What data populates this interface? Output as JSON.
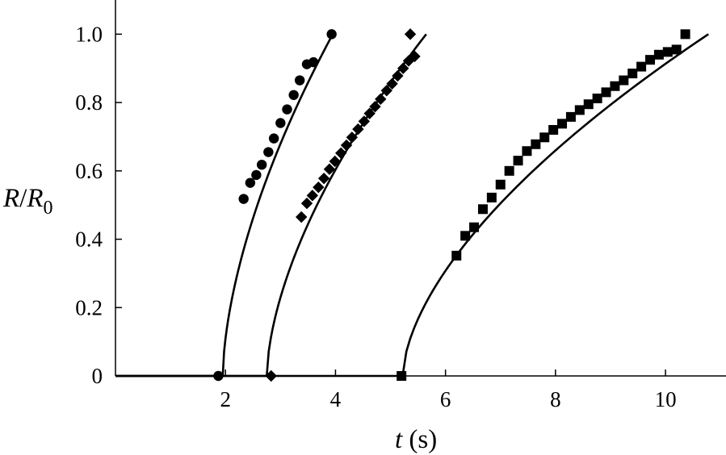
{
  "chart_data": {
    "type": "scatter",
    "title": "",
    "xlabel": {
      "var": "t",
      "unit": " (s)"
    },
    "ylabel": {
      "var1": "R",
      "sep": "/",
      "var2": "R",
      "sub": "0"
    },
    "xlim": [
      0,
      11.1
    ],
    "ylim": [
      0,
      1.1
    ],
    "x_ticks": [
      2,
      4,
      6,
      8,
      10
    ],
    "y_ticks": [
      {
        "value": 0,
        "label": "0"
      },
      {
        "value": 0.2,
        "label": "0.2"
      },
      {
        "value": 0.4,
        "label": "0.4"
      },
      {
        "value": 0.6,
        "label": "0.6"
      },
      {
        "value": 0.8,
        "label": "0.8"
      },
      {
        "value": 1.0,
        "label": "1.0"
      }
    ],
    "grid": false,
    "legend": "none",
    "series": [
      {
        "marker": "circle",
        "points": [
          [
            1.87,
            0.0
          ],
          [
            2.33,
            0.518
          ],
          [
            2.45,
            0.565
          ],
          [
            2.56,
            0.588
          ],
          [
            2.66,
            0.618
          ],
          [
            2.78,
            0.655
          ],
          [
            2.88,
            0.695
          ],
          [
            3.0,
            0.74
          ],
          [
            3.12,
            0.78
          ],
          [
            3.24,
            0.822
          ],
          [
            3.35,
            0.865
          ],
          [
            3.48,
            0.912
          ],
          [
            3.6,
            0.918
          ],
          [
            3.93,
            1.0
          ]
        ],
        "fit": {
          "t0": 1.95,
          "t1": 3.95,
          "exp": 0.6
        }
      },
      {
        "marker": "diamond",
        "points": [
          [
            2.83,
            0.0
          ],
          [
            3.38,
            0.465
          ],
          [
            3.48,
            0.505
          ],
          [
            3.58,
            0.528
          ],
          [
            3.69,
            0.552
          ],
          [
            3.79,
            0.578
          ],
          [
            3.89,
            0.605
          ],
          [
            3.99,
            0.628
          ],
          [
            4.1,
            0.652
          ],
          [
            4.2,
            0.675
          ],
          [
            4.3,
            0.698
          ],
          [
            4.41,
            0.722
          ],
          [
            4.52,
            0.745
          ],
          [
            4.62,
            0.768
          ],
          [
            4.72,
            0.788
          ],
          [
            4.82,
            0.81
          ],
          [
            4.93,
            0.835
          ],
          [
            5.03,
            0.855
          ],
          [
            5.13,
            0.878
          ],
          [
            5.23,
            0.9
          ],
          [
            5.33,
            0.922
          ],
          [
            5.44,
            0.935
          ],
          [
            5.36,
            1.0
          ]
        ],
        "fit": {
          "t0": 2.75,
          "t1": 5.65,
          "exp": 0.6
        }
      },
      {
        "marker": "square",
        "points": [
          [
            5.2,
            0.0
          ],
          [
            6.2,
            0.352
          ],
          [
            6.36,
            0.41
          ],
          [
            6.52,
            0.435
          ],
          [
            6.68,
            0.488
          ],
          [
            6.84,
            0.522
          ],
          [
            7.0,
            0.56
          ],
          [
            7.16,
            0.6
          ],
          [
            7.32,
            0.63
          ],
          [
            7.48,
            0.658
          ],
          [
            7.64,
            0.678
          ],
          [
            7.8,
            0.698
          ],
          [
            7.96,
            0.72
          ],
          [
            8.12,
            0.738
          ],
          [
            8.28,
            0.758
          ],
          [
            8.44,
            0.778
          ],
          [
            8.6,
            0.795
          ],
          [
            8.76,
            0.812
          ],
          [
            8.92,
            0.83
          ],
          [
            9.08,
            0.848
          ],
          [
            9.24,
            0.865
          ],
          [
            9.4,
            0.885
          ],
          [
            9.56,
            0.905
          ],
          [
            9.72,
            0.925
          ],
          [
            9.88,
            0.94
          ],
          [
            10.04,
            0.948
          ],
          [
            10.2,
            0.955
          ],
          [
            10.36,
            1.0
          ]
        ],
        "fit": {
          "t0": 5.22,
          "t1": 10.78,
          "exp": 0.6
        }
      }
    ]
  }
}
